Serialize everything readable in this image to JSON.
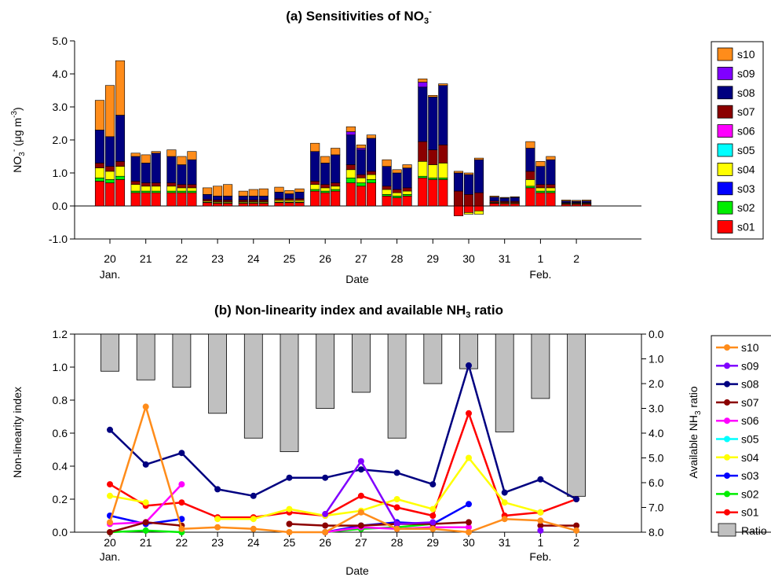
{
  "colors": {
    "s01": "#ff0000",
    "s02": "#00ee00",
    "s03": "#0000ff",
    "s04": "#ffff00",
    "s05": "#00ffff",
    "s06": "#ff00ff",
    "s07": "#8b0000",
    "s08": "#000080",
    "s09": "#8000ff",
    "s10": "#ff8c1a",
    "ratio": "#c0c0c0"
  },
  "chart_data": [
    {
      "type": "bar",
      "stacked": true,
      "title": "(a) Sensitivities of NO",
      "title_sub": "3",
      "title_sup": "-",
      "ylabel": "NO",
      "ylabel_sub": "3",
      "ylabel_sup": "-",
      "ylabel_rest": " (μg m",
      "ylabel_sup2": "-3",
      "ylabel_end": ")",
      "xlabel": "Date",
      "ylim": [
        -1.0,
        5.0
      ],
      "yticks": [
        "-1.0",
        "0.0",
        "1.0",
        "2.0",
        "3.0",
        "4.0",
        "5.0"
      ],
      "categories": [
        "20",
        "21",
        "22",
        "23",
        "24",
        "25",
        "26",
        "27",
        "28",
        "29",
        "30",
        "31",
        "1",
        "2"
      ],
      "month_labels": [
        {
          "at": "20",
          "text": "Jan."
        },
        {
          "at": "1",
          "text": "Feb."
        }
      ],
      "bars_per_category": 3,
      "legend": [
        "s10",
        "s09",
        "s08",
        "s07",
        "s06",
        "s05",
        "s04",
        "s03",
        "s02",
        "s01"
      ],
      "series_order_bottom_to_top": [
        "s01",
        "s02",
        "s04",
        "s07",
        "s08",
        "s09",
        "s10"
      ],
      "bars": [
        [
          {
            "s01": 0.75,
            "s02": 0.1,
            "s04": 0.3,
            "s07": 0.15,
            "s08": 1.0,
            "s09": 0.0,
            "s10": 0.9
          },
          {
            "s01": 0.7,
            "s02": 0.1,
            "s04": 0.25,
            "s07": 0.15,
            "s08": 0.9,
            "s09": 0.0,
            "s10": 1.55
          },
          {
            "s01": 0.8,
            "s02": 0.1,
            "s04": 0.3,
            "s07": 0.15,
            "s08": 1.4,
            "s09": 0.0,
            "s10": 1.65
          }
        ],
        [
          {
            "s01": 0.4,
            "s02": 0.05,
            "s04": 0.2,
            "s07": 0.1,
            "s08": 0.75,
            "s09": 0.0,
            "s10": 0.1
          },
          {
            "s01": 0.4,
            "s02": 0.05,
            "s04": 0.15,
            "s07": 0.1,
            "s08": 0.6,
            "s09": 0.0,
            "s10": 0.25
          },
          {
            "s01": 0.4,
            "s02": 0.05,
            "s04": 0.15,
            "s07": 0.1,
            "s08": 0.9,
            "s09": 0.0,
            "s10": 0.05
          }
        ],
        [
          {
            "s01": 0.4,
            "s02": 0.05,
            "s04": 0.15,
            "s07": 0.1,
            "s08": 0.8,
            "s09": 0.0,
            "s10": 0.2
          },
          {
            "s01": 0.4,
            "s02": 0.05,
            "s04": 0.1,
            "s07": 0.1,
            "s08": 0.6,
            "s09": 0.0,
            "s10": 0.25
          },
          {
            "s01": 0.4,
            "s02": 0.05,
            "s04": 0.1,
            "s07": 0.1,
            "s08": 0.75,
            "s09": 0.0,
            "s10": 0.25
          }
        ],
        [
          {
            "s01": 0.1,
            "s02": 0.02,
            "s04": 0.03,
            "s07": 0.05,
            "s08": 0.15,
            "s09": 0.0,
            "s10": 0.2
          },
          {
            "s01": 0.08,
            "s02": 0.02,
            "s04": 0.03,
            "s07": 0.05,
            "s08": 0.12,
            "s09": 0.0,
            "s10": 0.3
          },
          {
            "s01": 0.08,
            "s02": 0.02,
            "s04": 0.03,
            "s07": 0.05,
            "s08": 0.12,
            "s09": 0.0,
            "s10": 0.35
          }
        ],
        [
          {
            "s01": 0.08,
            "s02": 0.02,
            "s04": 0.03,
            "s07": 0.05,
            "s08": 0.12,
            "s09": 0.0,
            "s10": 0.15
          },
          {
            "s01": 0.08,
            "s02": 0.02,
            "s04": 0.03,
            "s07": 0.05,
            "s08": 0.12,
            "s09": 0.0,
            "s10": 0.2
          },
          {
            "s01": 0.08,
            "s02": 0.02,
            "s04": 0.03,
            "s07": 0.05,
            "s08": 0.12,
            "s09": 0.0,
            "s10": 0.22
          }
        ],
        [
          {
            "s01": 0.1,
            "s02": 0.02,
            "s04": 0.05,
            "s07": 0.05,
            "s08": 0.2,
            "s09": 0.0,
            "s10": 0.15
          },
          {
            "s01": 0.1,
            "s02": 0.02,
            "s04": 0.05,
            "s07": 0.05,
            "s08": 0.15,
            "s09": 0.0,
            "s10": 0.1
          },
          {
            "s01": 0.1,
            "s02": 0.02,
            "s04": 0.05,
            "s07": 0.05,
            "s08": 0.2,
            "s09": 0.0,
            "s10": 0.1
          }
        ],
        [
          {
            "s01": 0.45,
            "s02": 0.05,
            "s04": 0.15,
            "s07": 0.1,
            "s08": 0.9,
            "s09": 0.0,
            "s10": 0.25
          },
          {
            "s01": 0.4,
            "s02": 0.05,
            "s04": 0.1,
            "s07": 0.1,
            "s08": 0.65,
            "s09": 0.0,
            "s10": 0.2
          },
          {
            "s01": 0.45,
            "s02": 0.05,
            "s04": 0.1,
            "s07": 0.1,
            "s08": 0.85,
            "s09": 0.0,
            "s10": 0.2
          }
        ],
        [
          {
            "s01": 0.7,
            "s02": 0.15,
            "s04": 0.25,
            "s07": 0.15,
            "s08": 0.9,
            "s09": 0.1,
            "s10": 0.15
          },
          {
            "s01": 0.6,
            "s02": 0.1,
            "s04": 0.15,
            "s07": 0.1,
            "s08": 0.75,
            "s09": 0.05,
            "s10": 0.1
          },
          {
            "s01": 0.7,
            "s02": 0.1,
            "s04": 0.15,
            "s07": 0.1,
            "s08": 1.0,
            "s09": 0.0,
            "s10": 0.1
          }
        ],
        [
          {
            "s01": 0.3,
            "s02": 0.05,
            "s04": 0.15,
            "s07": 0.1,
            "s08": 0.6,
            "s09": 0.0,
            "s10": 0.2
          },
          {
            "s01": 0.25,
            "s02": 0.05,
            "s04": 0.1,
            "s07": 0.1,
            "s08": 0.5,
            "s09": 0.0,
            "s10": 0.1
          },
          {
            "s01": 0.3,
            "s02": 0.05,
            "s04": 0.1,
            "s07": 0.1,
            "s08": 0.6,
            "s09": 0.0,
            "s10": 0.1
          }
        ],
        [
          {
            "s01": 0.85,
            "s02": 0.05,
            "s04": 0.45,
            "s07": 0.6,
            "s08": 1.65,
            "s09": 0.15,
            "s10": 0.1
          },
          {
            "s01": 0.8,
            "s02": 0.05,
            "s04": 0.4,
            "s07": 0.45,
            "s08": 1.6,
            "s09": 0.0,
            "s10": 0.05
          },
          {
            "s01": 0.8,
            "s02": 0.05,
            "s04": 0.45,
            "s07": 0.55,
            "s08": 1.8,
            "s09": 0.0,
            "s10": 0.05
          }
        ],
        [
          {
            "s01": -0.3,
            "s02": 0.0,
            "s04": 0.0,
            "s07": 0.45,
            "s08": 0.55,
            "s09": 0.0,
            "s10": 0.05
          },
          {
            "s01": -0.2,
            "s02": 0.0,
            "s04": -0.05,
            "s07": 0.35,
            "s08": 0.6,
            "s09": 0.0,
            "s10": 0.05
          },
          {
            "s01": -0.15,
            "s02": 0.0,
            "s04": -0.1,
            "s07": 0.4,
            "s08": 1.0,
            "s09": 0.0,
            "s10": 0.05
          }
        ],
        [
          {
            "s01": 0.08,
            "s02": 0.01,
            "s04": 0.02,
            "s07": 0.04,
            "s08": 0.12,
            "s09": 0.0,
            "s10": 0.03
          },
          {
            "s01": 0.07,
            "s02": 0.01,
            "s04": 0.02,
            "s07": 0.04,
            "s08": 0.1,
            "s09": 0.0,
            "s10": 0.02
          },
          {
            "s01": 0.07,
            "s02": 0.01,
            "s04": 0.02,
            "s07": 0.04,
            "s08": 0.12,
            "s09": 0.0,
            "s10": 0.02
          }
        ],
        [
          {
            "s01": 0.55,
            "s02": 0.05,
            "s04": 0.2,
            "s07": 0.25,
            "s08": 0.7,
            "s09": 0.0,
            "s10": 0.2
          },
          {
            "s01": 0.4,
            "s02": 0.05,
            "s04": 0.1,
            "s07": 0.1,
            "s08": 0.55,
            "s09": 0.0,
            "s10": 0.15
          },
          {
            "s01": 0.4,
            "s02": 0.05,
            "s04": 0.1,
            "s07": 0.1,
            "s08": 0.75,
            "s09": 0.0,
            "s10": 0.1
          }
        ],
        [
          {
            "s01": 0.05,
            "s02": 0.01,
            "s04": 0.02,
            "s07": 0.02,
            "s08": 0.05,
            "s09": 0.0,
            "s10": 0.03
          },
          {
            "s01": 0.05,
            "s02": 0.01,
            "s04": 0.02,
            "s07": 0.02,
            "s08": 0.04,
            "s09": 0.0,
            "s10": 0.03
          },
          {
            "s01": 0.05,
            "s02": 0.01,
            "s04": 0.02,
            "s07": 0.02,
            "s08": 0.05,
            "s09": 0.0,
            "s10": 0.03
          }
        ]
      ]
    },
    {
      "type": "line",
      "title": "(b) Non-linearity index and available NH",
      "title_sub": "3",
      "title_rest": " ratio",
      "ylabel": "Non-linearity index",
      "y2label": "Available NH",
      "y2label_sub": "3",
      "y2label_rest": " ratio",
      "xlabel": "Date",
      "ylim": [
        0.0,
        1.2
      ],
      "yticks": [
        "0.0",
        "0.2",
        "0.4",
        "0.6",
        "0.8",
        "1.0",
        "1.2"
      ],
      "y2lim": [
        0.0,
        8.0
      ],
      "y2_inverted": true,
      "y2ticks": [
        "0.0",
        "1.0",
        "2.0",
        "3.0",
        "4.0",
        "5.0",
        "6.0",
        "7.0",
        "8.0"
      ],
      "categories": [
        "20",
        "21",
        "22",
        "23",
        "24",
        "25",
        "26",
        "27",
        "28",
        "29",
        "30",
        "31",
        "1",
        "2"
      ],
      "month_labels": [
        {
          "at": "20",
          "text": "Jan."
        },
        {
          "at": "1",
          "text": "Feb."
        }
      ],
      "legend": [
        "s10",
        "s09",
        "s08",
        "s07",
        "s06",
        "s05",
        "s04",
        "s03",
        "s02",
        "s01",
        "Ratio"
      ],
      "legend_visible_text": [
        "s10",
        "s09",
        "s08",
        "s07",
        "s06",
        "s05",
        "s04",
        "s03",
        "s02",
        "s01",
        "Ratio"
      ],
      "ratio_bars": [
        1.5,
        1.85,
        2.15,
        3.2,
        4.2,
        4.75,
        3.0,
        2.35,
        4.2,
        2.0,
        1.4,
        3.95,
        2.6,
        6.55
      ],
      "series": [
        {
          "name": "s01",
          "values": [
            0.29,
            0.16,
            0.18,
            0.09,
            0.09,
            0.12,
            0.1,
            0.22,
            0.15,
            0.1,
            0.72,
            0.1,
            0.12,
            0.2
          ]
        },
        {
          "name": "s02",
          "values": [
            0.0,
            0.01,
            0.0,
            null,
            null,
            null,
            0.0,
            0.02,
            0.03,
            0.05,
            null,
            null,
            null,
            null
          ]
        },
        {
          "name": "s03",
          "values": [
            0.1,
            0.05,
            0.08,
            null,
            null,
            null,
            0.0,
            0.04,
            0.06,
            0.05,
            0.17,
            null,
            null,
            null
          ]
        },
        {
          "name": "s04",
          "values": [
            0.22,
            0.18,
            null,
            0.08,
            0.08,
            0.14,
            0.1,
            0.13,
            0.2,
            0.14,
            0.45,
            0.18,
            0.12,
            null
          ]
        },
        {
          "name": "s06",
          "values": [
            0.05,
            0.06,
            0.29,
            null,
            null,
            null,
            0.0,
            0.03,
            0.02,
            0.03,
            0.03,
            null,
            null,
            null
          ]
        },
        {
          "name": "s07",
          "values": [
            0.0,
            0.06,
            0.04,
            null,
            null,
            0.05,
            0.04,
            0.04,
            0.05,
            0.05,
            0.06,
            null,
            0.04,
            0.04
          ]
        },
        {
          "name": "s08",
          "values": [
            0.62,
            0.41,
            0.48,
            0.26,
            0.22,
            0.33,
            0.33,
            0.38,
            0.36,
            0.29,
            1.01,
            0.24,
            0.32,
            0.2
          ]
        },
        {
          "name": "s09",
          "values": [
            null,
            null,
            null,
            null,
            null,
            null,
            0.11,
            0.43,
            0.05,
            0.06,
            null,
            null,
            0.01,
            null
          ]
        },
        {
          "name": "s10",
          "values": [
            0.06,
            0.76,
            0.02,
            0.03,
            0.02,
            0.0,
            0.0,
            0.12,
            0.02,
            0.02,
            0.0,
            0.08,
            0.07,
            0.01
          ]
        }
      ]
    }
  ]
}
